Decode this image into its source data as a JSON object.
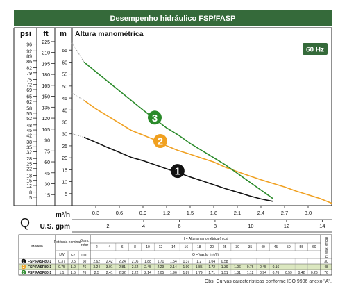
{
  "header": {
    "title": "Desempenho hidráulico FSP/FASP"
  },
  "freq_badge": "60 Hz",
  "chart_data": {
    "type": "line",
    "title": "Desempenho hidráulico FSP/FASP",
    "ylabel": "Altura manométrica",
    "unit_headers": {
      "psi": "psi",
      "ft": "ft",
      "m": "m"
    },
    "m_ticks": [
      5,
      10,
      15,
      20,
      25,
      30,
      35,
      40,
      45,
      50,
      55,
      60,
      65
    ],
    "ft_ticks": [
      15,
      30,
      45,
      60,
      75,
      90,
      105,
      120,
      135,
      150,
      165,
      180,
      195,
      210,
      225
    ],
    "psi_ticks": [
      5,
      8,
      12,
      15,
      18,
      22,
      25,
      28,
      32,
      35,
      38,
      42,
      45,
      48,
      52,
      55,
      58,
      62,
      65,
      69,
      72,
      75,
      79,
      82,
      86,
      89,
      92,
      96
    ],
    "ylim": [
      0,
      70
    ],
    "xlim": [
      0,
      3.3
    ],
    "x_ticks_m3h": [
      "0,3",
      "0,6",
      "0,9",
      "1,2",
      "1,5",
      "1,8",
      "2,1",
      "2,4",
      "2,7",
      "3,0"
    ],
    "x_ticks_gpm": [
      "2",
      "4",
      "6",
      "8",
      "10",
      "12",
      "14"
    ],
    "x_row_labels": {
      "q": "Q",
      "m3h": "m³/h",
      "gpm": "U.S. gpm"
    },
    "series": [
      {
        "name": "1",
        "color": "#111111",
        "x": [
          0.15,
          0.3,
          0.45,
          0.6,
          0.75,
          0.9,
          1.05,
          1.2,
          1.35,
          1.5,
          1.65,
          1.8,
          1.95,
          2.1,
          2.25,
          2.4,
          2.55
        ],
        "y": [
          28.6,
          26.5,
          24.3,
          22.3,
          20.2,
          18.8,
          17.1,
          15.4,
          13.7,
          12.0,
          10.4,
          8.7,
          7.1,
          5.6,
          4.1,
          2.8,
          1.8
        ],
        "dashed_from": [
          0.0,
          30.0
        ]
      },
      {
        "name": "2",
        "color": "#f0a020",
        "x": [
          0.15,
          0.3,
          0.45,
          0.6,
          0.75,
          0.9,
          1.05,
          1.2,
          1.35,
          1.5,
          1.65,
          1.8,
          1.95,
          2.1,
          2.25,
          2.4,
          2.55,
          2.7,
          2.85,
          3.0,
          3.15,
          3.3
        ],
        "y": [
          44.0,
          40.5,
          37.5,
          34.5,
          31.5,
          29.5,
          27.5,
          25.0,
          23.0,
          21.5,
          19.8,
          18.2,
          16.0,
          14.2,
          12.5,
          10.8,
          9.3,
          7.8,
          6.0,
          4.5,
          3.0,
          1.0
        ],
        "dashed_from": [
          0.0,
          47.0
        ]
      },
      {
        "name": "3",
        "color": "#2a8a2a",
        "x": [
          0.15,
          0.3,
          0.45,
          0.6,
          0.75,
          0.9,
          1.05,
          1.2,
          1.35,
          1.5,
          1.65,
          1.8,
          1.95,
          2.1,
          2.25,
          2.4,
          2.55
        ],
        "y": [
          60.0,
          56.0,
          52.0,
          48.0,
          44.0,
          40.0,
          36.2,
          32.5,
          29.5,
          26.0,
          23.0,
          20.0,
          17.0,
          13.5,
          10.0,
          6.5,
          3.0
        ],
        "dashed_from": [
          0.0,
          68.0
        ]
      }
    ]
  },
  "table": {
    "col_modelo": "Modelo",
    "col_potencia": "Potência nominal",
    "col_diam": "Diam. rotor",
    "col_h": "H = Altura manométrica (mca)",
    "col_hmax": "H Máx. (mca)",
    "sub_kw": "kW",
    "sub_cv": "cv",
    "sub_mm": "mm",
    "q_label": "Q = Vazão (m³/h)",
    "h_heads": [
      "2",
      "4",
      "6",
      "8",
      "10",
      "12",
      "14",
      "16",
      "18",
      "20",
      "25",
      "30",
      "35",
      "40",
      "45",
      "50",
      "55",
      "60"
    ],
    "rows": [
      {
        "num": "1",
        "color": "#111111",
        "model": "FSP/FASP80-1",
        "kw": "0.37",
        "cv": "0.5",
        "mm": "60",
        "vals": [
          "2.62",
          "2.42",
          "2.24",
          "2.06",
          "1.88",
          "1.71",
          "1.54",
          "1.37",
          "1.2",
          "1.04",
          "0.58",
          "",
          "",
          "",
          "",
          "",
          "",
          ""
        ],
        "hmax": "30"
      },
      {
        "num": "2",
        "color": "#f0a020",
        "model": "FSP/FASP80-1",
        "kw": "0.75",
        "cv": "1.0",
        "mm": "76",
        "vals": [
          "3.24",
          "3.01",
          "2.81",
          "2.62",
          "2.45",
          "2.29",
          "2.14",
          "1.99",
          "1.85",
          "1.72",
          "1.39",
          "1.06",
          "0.76",
          "0.45",
          "0.16",
          "",
          "",
          ""
        ],
        "hmax": "48"
      },
      {
        "num": "3",
        "color": "#2a8a2a",
        "model": "FSP/FASP80-1",
        "kw": "1.1",
        "cv": "1.5",
        "mm": "76",
        "vals": [
          "2.5",
          "2.41",
          "2.32",
          "2.22",
          "2.14",
          "2.05",
          "1.96",
          "1.87",
          "1.79",
          "1.71",
          "1.51",
          "1.31",
          "1.12",
          "0.94",
          "0.76",
          "0.59",
          "0.42",
          "0.26"
        ],
        "hmax": "76"
      }
    ]
  },
  "note": "Obs: Curvas características conforme ISO 9906 anexo \"A\"."
}
